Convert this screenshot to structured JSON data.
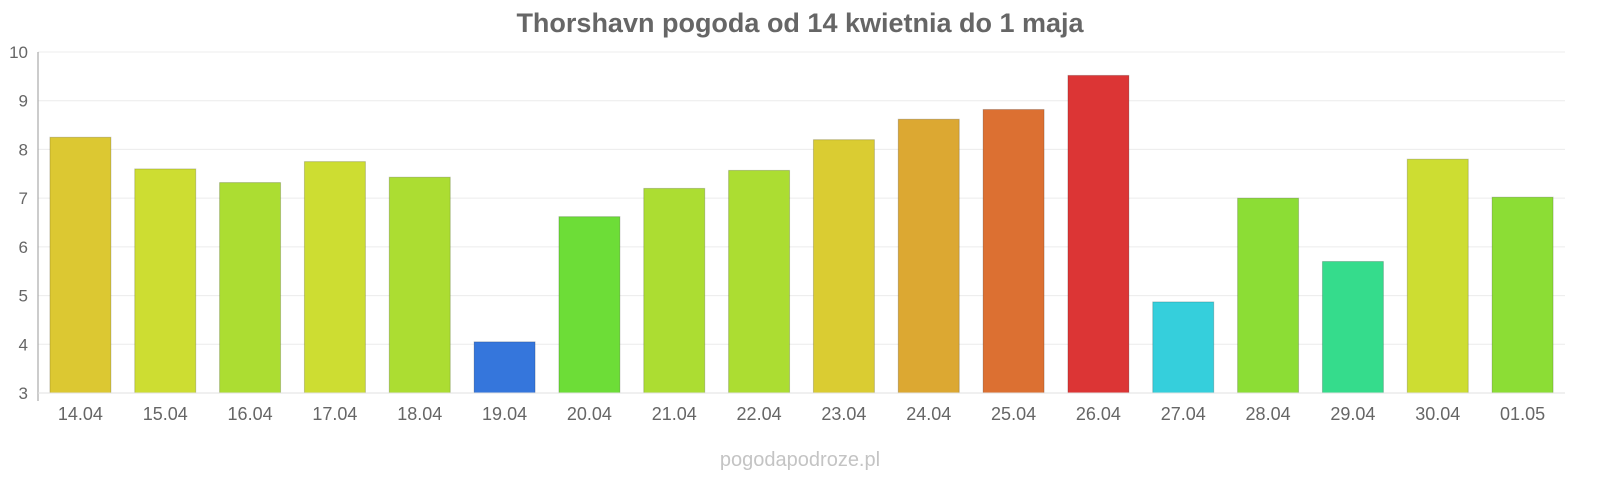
{
  "chart_data": {
    "type": "bar",
    "title": "Thorshavn pogoda od 14 kwietnia do 1 maja",
    "xlabel": "",
    "ylabel": "",
    "ylim": [
      3,
      10
    ],
    "yticks": [
      3,
      4,
      5,
      6,
      7,
      8,
      9,
      10
    ],
    "grid": true,
    "legend": "none",
    "categories": [
      "14.04",
      "15.04",
      "16.04",
      "17.04",
      "18.04",
      "19.04",
      "20.04",
      "21.04",
      "22.04",
      "23.04",
      "24.04",
      "25.04",
      "26.04",
      "27.04",
      "28.04",
      "29.04",
      "30.04",
      "01.05"
    ],
    "values": [
      8.25,
      7.6,
      7.32,
      7.75,
      7.43,
      4.05,
      6.62,
      7.2,
      7.57,
      8.2,
      8.62,
      8.82,
      9.52,
      4.87,
      7.0,
      5.7,
      7.8,
      7.02
    ],
    "colors": [
      "#dcc832",
      "#cddd32",
      "#acdd32",
      "#cddd32",
      "#acdd32",
      "#3576dc",
      "#6ddd37",
      "#acdd32",
      "#acdd32",
      "#dacc32",
      "#dca832",
      "#dc7032",
      "#dc3535",
      "#35cfdc",
      "#8cdd35",
      "#35dc8c",
      "#cddd32",
      "#8cdd35"
    ]
  },
  "watermark": "pogodapodroze.pl"
}
